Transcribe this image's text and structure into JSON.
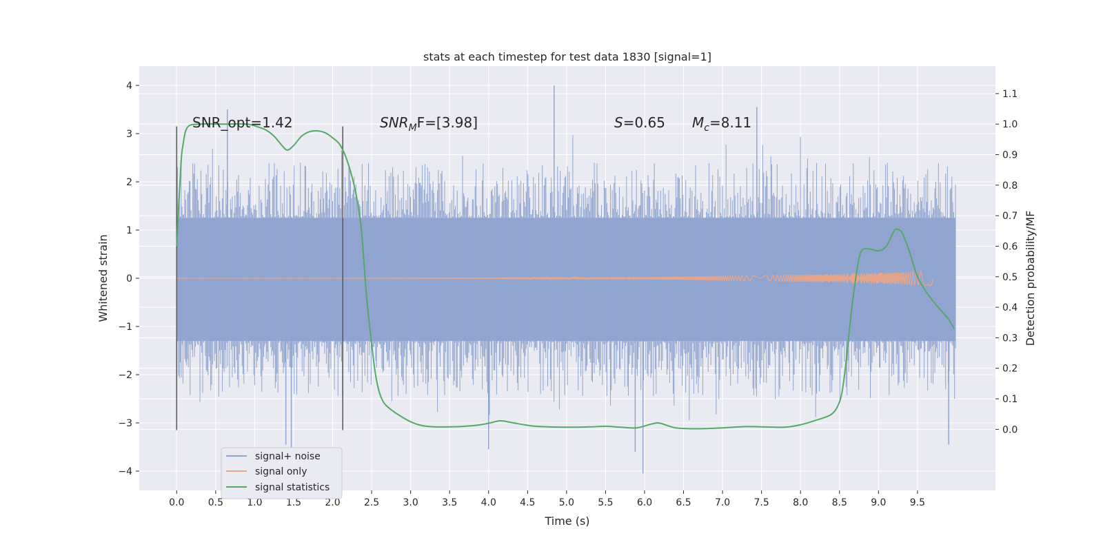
{
  "chart_data": {
    "type": "line",
    "title": "stats at each timestep for test data 1830 [signal=1]",
    "xlabel": "Time (s)",
    "ylabel_left": "Whitened strain",
    "ylabel_right": "Detection probability/MF",
    "xlim": [
      -0.48,
      10.5
    ],
    "ylim_left": [
      -4.4,
      4.4
    ],
    "ylim_right": [
      -0.2,
      1.19
    ],
    "x_ticks": [
      "0.0",
      "0.5",
      "1.0",
      "1.5",
      "2.0",
      "2.5",
      "3.0",
      "3.5",
      "4.0",
      "4.5",
      "5.0",
      "5.5",
      "6.0",
      "6.5",
      "7.0",
      "7.5",
      "8.0",
      "8.5",
      "9.0",
      "9.5"
    ],
    "y_ticks_left": [
      "4",
      "3",
      "2",
      "1",
      "0",
      "−1",
      "−2",
      "−3",
      "−4"
    ],
    "y_ticks_right": [
      "1.1",
      "1.0",
      "0.9",
      "0.8",
      "0.7",
      "0.6",
      "0.5",
      "0.4",
      "0.3",
      "0.2",
      "0.1",
      "0.0"
    ],
    "grid": true,
    "legend_position": "lower-left",
    "colors": {
      "noise": "#8fa4cf",
      "signal": "#e5a58a",
      "stats": "#55a868",
      "background": "#eaeaf2",
      "grid": "#ffffff",
      "vline": "#555555"
    },
    "annotations": {
      "snr_opt": "SNR_opt=1.42",
      "snr_mf_base": "SNR",
      "snr_mf_sub": "M",
      "snr_mf_rest": "F=[3.98]",
      "s_sym": "S",
      "s_val": "=0.65",
      "mc_sym": "M",
      "mc_sub": "c",
      "mc_val": "=8.11"
    },
    "vlines_x": [
      0.0,
      2.13
    ],
    "series": [
      {
        "name": "signal+ noise",
        "axis": "left",
        "x_range": [
          0.0,
          9.99
        ],
        "core_range": [
          -1.3,
          1.25
        ],
        "typical_peak": 2.4,
        "extreme_peaks": [
          {
            "x": 4.84,
            "y": 4.0
          },
          {
            "x": 0.65,
            "y": 3.5
          },
          {
            "x": 7.44,
            "y": 3.55
          },
          {
            "x": 1.4,
            "y": -3.45
          },
          {
            "x": 1.47,
            "y": -3.6
          },
          {
            "x": 4.0,
            "y": -3.55
          },
          {
            "x": 5.98,
            "y": -4.05
          },
          {
            "x": 5.88,
            "y": -3.6
          },
          {
            "x": 9.9,
            "y": -3.45
          }
        ]
      },
      {
        "name": "signal only",
        "axis": "left",
        "x_range": [
          0.0,
          9.7
        ],
        "amplitude_end": 0.15
      },
      {
        "name": "signal statistics",
        "axis": "right",
        "x": [
          0.0,
          0.05,
          0.08,
          0.14,
          0.3,
          0.6,
          0.9,
          1.05,
          1.15,
          1.25,
          1.35,
          1.42,
          1.5,
          1.6,
          1.7,
          1.8,
          1.9,
          2.0,
          2.1,
          2.2,
          2.3,
          2.37,
          2.43,
          2.5,
          2.55,
          2.6,
          2.65,
          2.7,
          2.8,
          3.0,
          3.2,
          3.5,
          3.8,
          4.0,
          4.15,
          4.3,
          4.6,
          5.0,
          5.3,
          5.5,
          5.7,
          5.9,
          6.1,
          6.2,
          6.4,
          6.7,
          7.0,
          7.3,
          7.5,
          7.8,
          8.0,
          8.2,
          8.4,
          8.5,
          8.55,
          8.6,
          8.65,
          8.7,
          8.75,
          8.8,
          8.9,
          9.0,
          9.1,
          9.2,
          9.25,
          9.3,
          9.35,
          9.4,
          9.5,
          9.6,
          9.7,
          9.8,
          9.9,
          9.97
        ],
        "y": [
          0.6,
          0.85,
          0.93,
          0.99,
          1.0,
          1.0,
          1.0,
          0.99,
          0.98,
          0.96,
          0.93,
          0.915,
          0.93,
          0.96,
          0.975,
          0.978,
          0.972,
          0.955,
          0.93,
          0.87,
          0.77,
          0.65,
          0.45,
          0.28,
          0.18,
          0.12,
          0.09,
          0.075,
          0.055,
          0.025,
          0.01,
          0.008,
          0.012,
          0.02,
          0.028,
          0.022,
          0.01,
          0.007,
          0.008,
          0.01,
          0.007,
          0.005,
          0.018,
          0.02,
          0.005,
          0.002,
          0.005,
          0.009,
          0.008,
          0.007,
          0.015,
          0.03,
          0.05,
          0.09,
          0.15,
          0.26,
          0.38,
          0.48,
          0.56,
          0.59,
          0.59,
          0.585,
          0.6,
          0.65,
          0.655,
          0.645,
          0.615,
          0.58,
          0.5,
          0.455,
          0.42,
          0.39,
          0.36,
          0.33
        ]
      }
    ]
  }
}
